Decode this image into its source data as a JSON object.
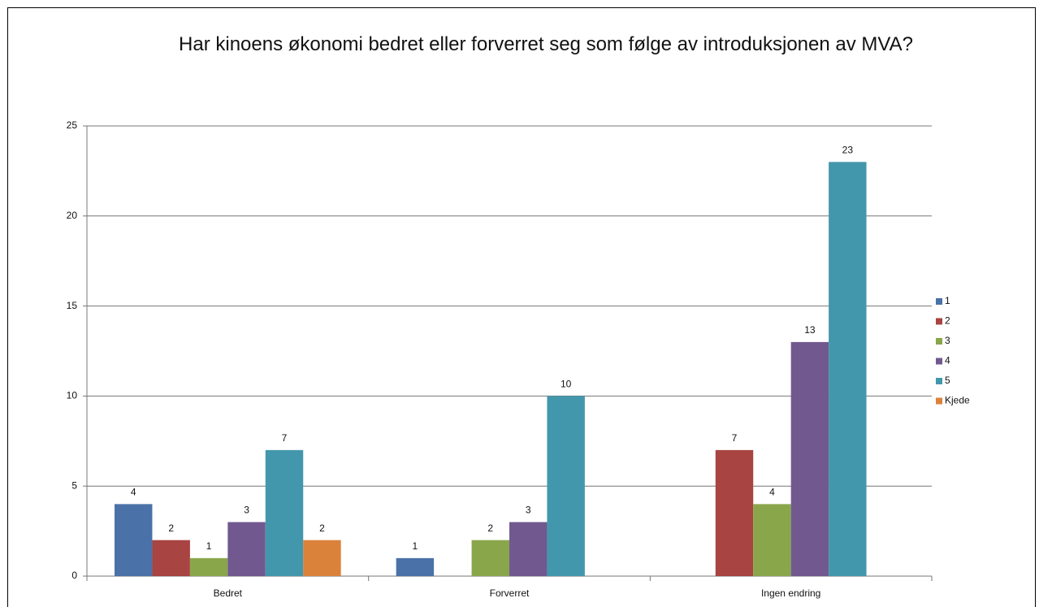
{
  "chart_data": {
    "type": "bar",
    "title": "Har kinoens økonomi bedret eller forverret seg som følge av introduksjonen av MVA?",
    "categories": [
      "Bedret",
      "Forverret",
      "Ingen endring"
    ],
    "series": [
      {
        "name": "1",
        "color": "#4a72a8",
        "values": [
          4,
          1,
          null
        ]
      },
      {
        "name": "2",
        "color": "#a84441",
        "values": [
          2,
          null,
          7
        ]
      },
      {
        "name": "3",
        "color": "#8aa64b",
        "values": [
          1,
          2,
          4
        ]
      },
      {
        "name": "4",
        "color": "#71598f",
        "values": [
          3,
          3,
          13
        ]
      },
      {
        "name": "5",
        "color": "#4397ac",
        "values": [
          7,
          10,
          23
        ]
      },
      {
        "name": "Kjede",
        "color": "#db823a",
        "values": [
          2,
          null,
          null
        ]
      }
    ],
    "ylim": [
      0,
      25
    ],
    "yticks": [
      0,
      5,
      10,
      15,
      20,
      25
    ],
    "grid": true,
    "legend": "right"
  }
}
